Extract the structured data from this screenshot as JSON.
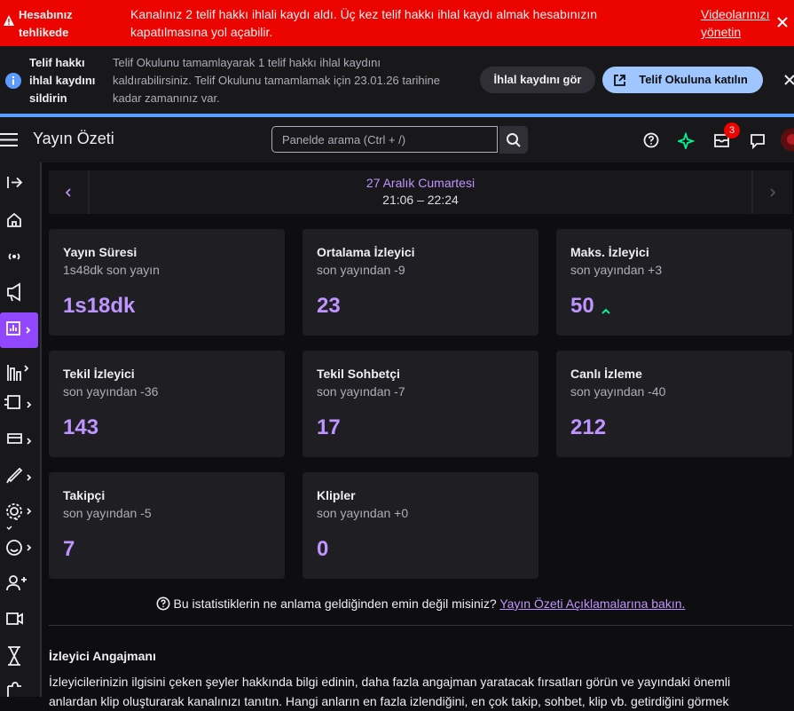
{
  "alert_banner": {
    "title": "Hesabınız tehlikede",
    "message": "Kanalınız 2 telif hakkı ihlali kaydı aldı. Üç kez telif hakkı ihlal kaydı almak hesabınızın kapatılmasına yol açabilir.",
    "link": "Videolarınızı yönetin"
  },
  "info_banner": {
    "title": "Telif hakkı ihlal kaydını sildirin",
    "message": "Telif Okulunu tamamlayarak 1 telif hakkı ihlal kaydını kaldırabilirsiniz. Telif Okulunu tamamlamak için 23.01.26 tarihine kadar zamanınız var.",
    "secondary_button": "İhlal kaydını gör",
    "primary_button": "Telif Okuluna katılın"
  },
  "top_nav": {
    "title": "Yayın Özeti",
    "search_placeholder": "Panelde arama (Ctrl + /)",
    "notification_count": 3
  },
  "date_nav": {
    "date": "27 Aralık Cumartesi",
    "time_range": "21:06 – 22:24"
  },
  "cards": [
    {
      "title": "Yayın Süresi",
      "subtitle": "1s48dk son yayın",
      "value": "1s18dk"
    },
    {
      "title": "Ortalama İzleyici",
      "subtitle": "son yayından -9",
      "value": 23
    },
    {
      "title": "Maks. İzleyici",
      "subtitle": "son yayından +3",
      "value": 50
    },
    {
      "title": "Tekil İzleyici",
      "subtitle": "son yayından -36",
      "value": 143
    },
    {
      "title": "Tekil Sohbetçi",
      "subtitle": "son yayından -7",
      "value": 17
    },
    {
      "title": "Canlı İzleme",
      "subtitle": "son yayından -40",
      "value": 212
    },
    {
      "title": "Takipçi",
      "subtitle": "son yayından -5",
      "value": 7
    },
    {
      "title": "Klipler",
      "subtitle": "son yayından +0",
      "value": 0
    }
  ],
  "help": {
    "text": "Bu istatistiklerin ne anlama geldiğinden emin değil misiniz?",
    "link": "Yayın Özeti Açıklamalarına bakın."
  },
  "section": {
    "title": "İzleyici Angajmanı",
    "text": "İzleyicilerinizin ilgisini çeken şeyler hakkında bilgi edinin, daha fazla angajman yaratacak fırsatları görün ve yayındaki önemli anlardan klip oluşturarak kanalınızı tanıtın. Hangi anların en fazla izlendiğini, en çok takip, sohbet, klip vb. getirdiğini görmek"
  }
}
